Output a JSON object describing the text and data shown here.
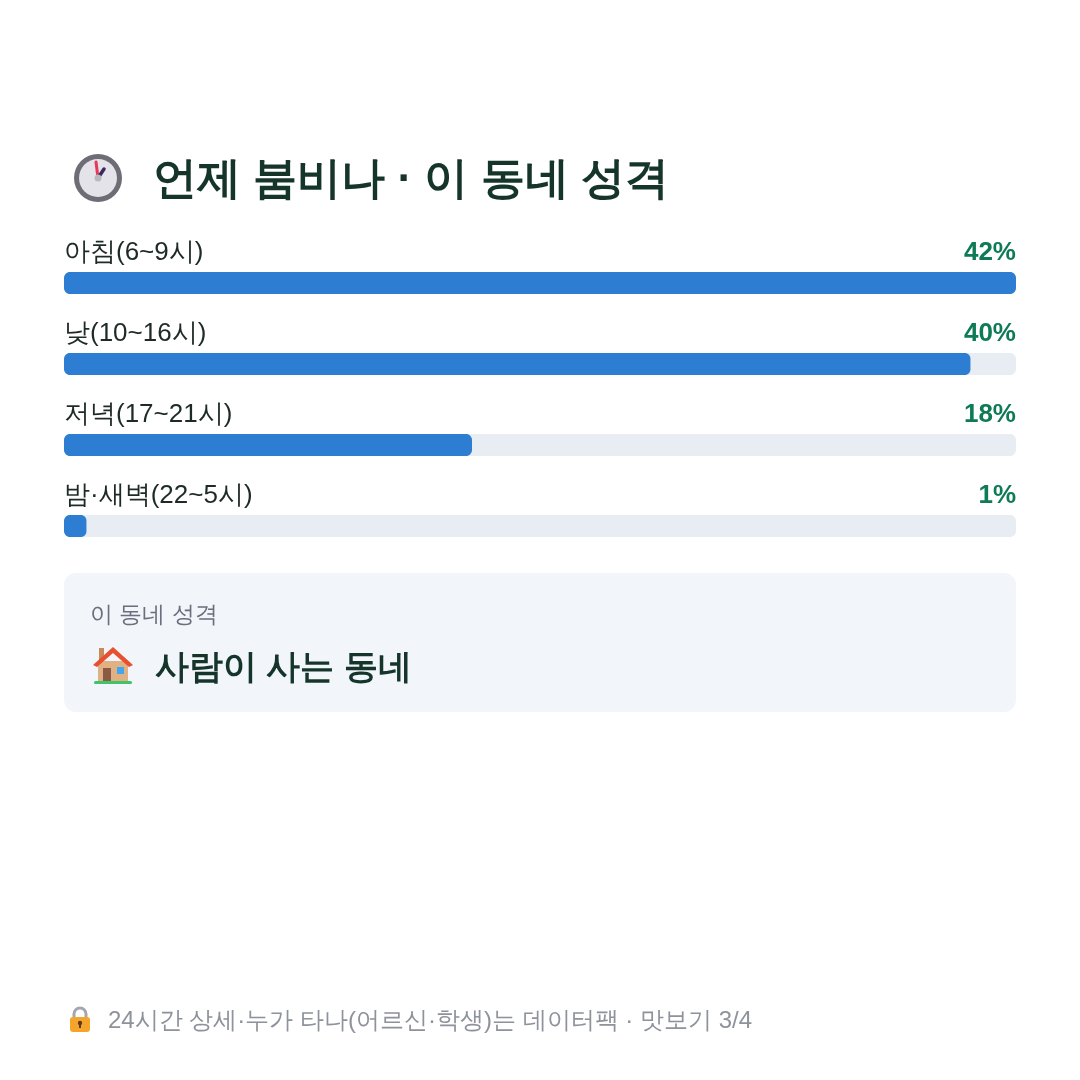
{
  "chart_data": {
    "type": "bar",
    "orientation": "horizontal",
    "title": "언제 붐비나 · 이 동네 성격",
    "categories": [
      "아침(6~9시)",
      "낮(10~16시)",
      "저녁(17~21시)",
      "밤·새벽(22~5시)"
    ],
    "values": [
      42,
      40,
      18,
      1
    ],
    "value_labels": [
      "42%",
      "40%",
      "18%",
      "1%"
    ],
    "color": "#2d7dd2",
    "tick_labels": "y",
    "annotations": [
      "이 동네 성격",
      "사람이 사는 동네",
      "24시간 상세·누가 타나(어르신·학생)는 데이터팩 · 맛보기 3/4"
    ]
  }
}
